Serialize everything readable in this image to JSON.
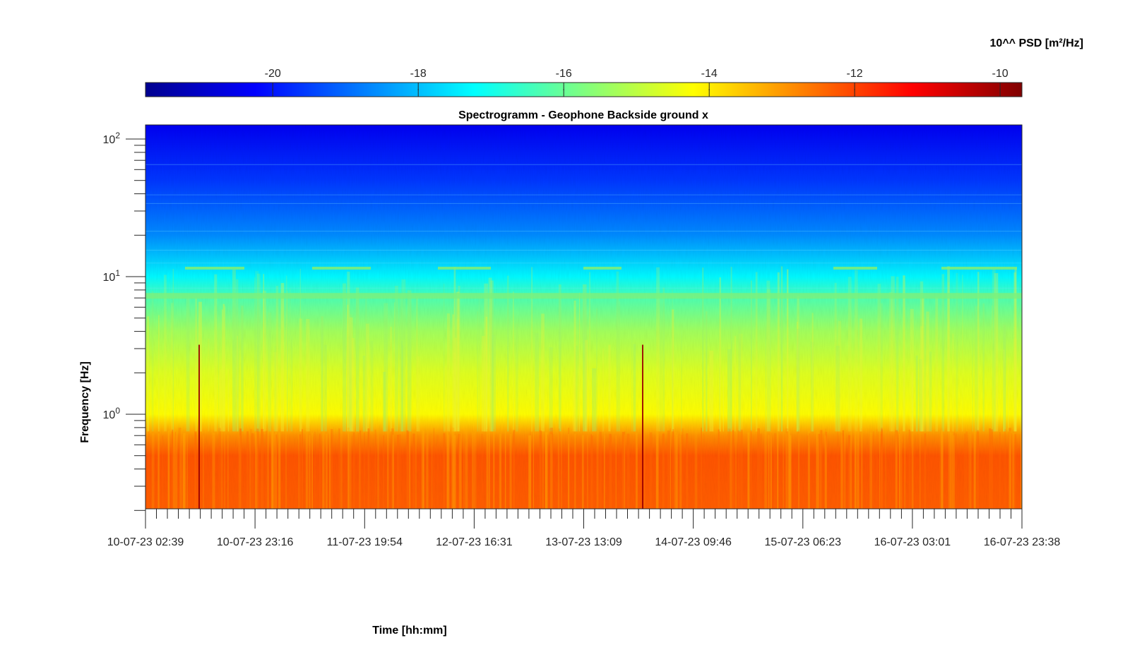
{
  "chart_data": {
    "type": "heatmap",
    "title": "Spectrogramm - Geophone Backside ground x",
    "xlabel": "Time [hh:mm]",
    "ylabel": "Frequency [Hz]",
    "colorbar_label": "10^^ PSD [m²/Hz]",
    "colormap": "jet",
    "x_ticks": [
      "10-07-23 02:39",
      "10-07-23 23:16",
      "11-07-23 19:54",
      "12-07-23 16:31",
      "13-07-23 13:09",
      "14-07-23 09:46",
      "15-07-23 06:23",
      "16-07-23 03:01",
      "16-07-23 23:38"
    ],
    "y_scale": "log",
    "y_ticks": [
      {
        "base": "10",
        "exp": "0"
      },
      {
        "base": "10",
        "exp": "1"
      },
      {
        "base": "10",
        "exp": "2"
      }
    ],
    "ylim": [
      0.2,
      125
    ],
    "colorbar_ticks": [
      "-20",
      "-18",
      "-16",
      "-14",
      "-12",
      "-10"
    ],
    "clim": [
      -21.75,
      -9.7
    ],
    "grid": false,
    "colorbar_location": "top",
    "psd_profile_by_frequency": [
      {
        "f": 0.2,
        "log_psd": -12.3
      },
      {
        "f": 0.5,
        "log_psd": -12.2
      },
      {
        "f": 0.7,
        "log_psd": -12.9
      },
      {
        "f": 1.0,
        "log_psd": -14.2
      },
      {
        "f": 2.0,
        "log_psd": -14.6
      },
      {
        "f": 4.0,
        "log_psd": -15.3
      },
      {
        "f": 7.0,
        "log_psd": -16.3
      },
      {
        "f": 10.0,
        "log_psd": -17.3
      },
      {
        "f": 20.0,
        "log_psd": -18.6
      },
      {
        "f": 50.0,
        "log_psd": -19.6
      },
      {
        "f": 125.0,
        "log_psd": -20.4
      }
    ]
  }
}
